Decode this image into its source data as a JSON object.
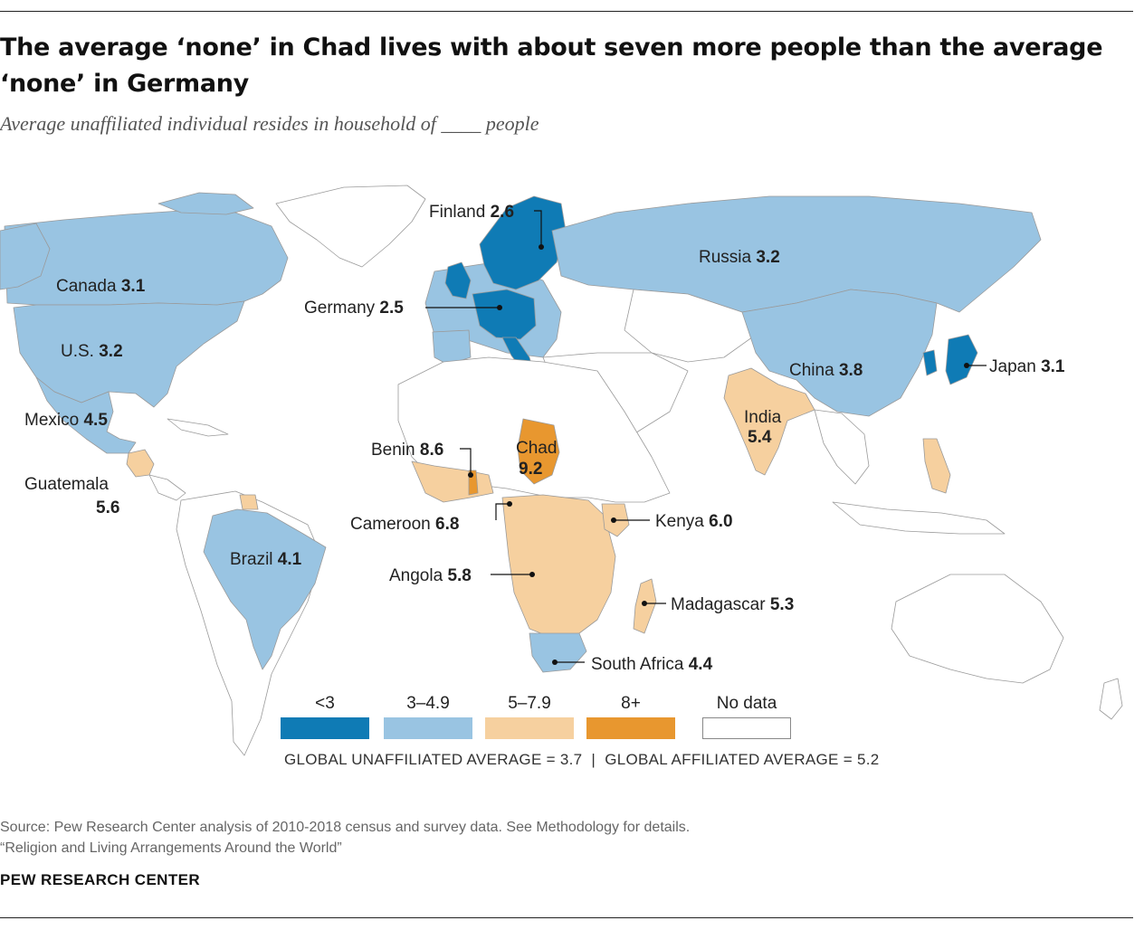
{
  "title": "The average ‘none’ in Chad lives with about seven more people than the average ‘none’ in Germany",
  "subtitle": "Average unaffiliated individual resides in household of ____ people",
  "colors": {
    "lt3": "#0f7bb5",
    "3to4.9": "#99c4e2",
    "5to7.9": "#f6d09f",
    "8plus": "#e8972f",
    "nodata": "#ffffff",
    "border": "#9a9a9a"
  },
  "labels": {
    "finland": {
      "name": "Finland",
      "value": "2.6"
    },
    "russia": {
      "name": "Russia",
      "value": "3.2"
    },
    "canada": {
      "name": "Canada",
      "value": "3.1"
    },
    "germany": {
      "name": "Germany",
      "value": "2.5"
    },
    "us": {
      "name": "U.S.",
      "value": "3.2"
    },
    "japan": {
      "name": "Japan",
      "value": "3.1"
    },
    "china": {
      "name": "China",
      "value": "3.8"
    },
    "mexico": {
      "name": "Mexico",
      "value": "4.5"
    },
    "india": {
      "name": "India",
      "value": "5.4"
    },
    "benin": {
      "name": "Benin",
      "value": "8.6"
    },
    "chad": {
      "name": "Chad",
      "value": "9.2"
    },
    "guatemala": {
      "name": "Guatemala",
      "value": "5.6"
    },
    "cameroon": {
      "name": "Cameroon",
      "value": "6.8"
    },
    "kenya": {
      "name": "Kenya",
      "value": "6.0"
    },
    "brazil": {
      "name": "Brazil",
      "value": "4.1"
    },
    "angola": {
      "name": "Angola",
      "value": "5.8"
    },
    "madagascar": {
      "name": "Madagascar",
      "value": "5.3"
    },
    "south_africa": {
      "name": "South Africa",
      "value": "4.4"
    }
  },
  "legend": [
    {
      "label": "<3",
      "color": "#0f7bb5"
    },
    {
      "label": "3–4.9",
      "color": "#99c4e2"
    },
    {
      "label": "5–7.9",
      "color": "#f6d09f"
    },
    {
      "label": "8+",
      "color": "#e8972f"
    },
    {
      "label": "No data",
      "color": "#ffffff"
    }
  ],
  "averages": {
    "unaffiliated": "GLOBAL UNAFFILIATED AVERAGE = 3.7",
    "separator": "  |  ",
    "affiliated": "GLOBAL AFFILIATED AVERAGE = 5.2"
  },
  "source": {
    "line1": "Source: Pew Research Center analysis of 2010-2018 census and survey data. See Methodology for details.",
    "line2": "“Religion and Living Arrangements Around the World”"
  },
  "brand": "PEW RESEARCH CENTER"
}
